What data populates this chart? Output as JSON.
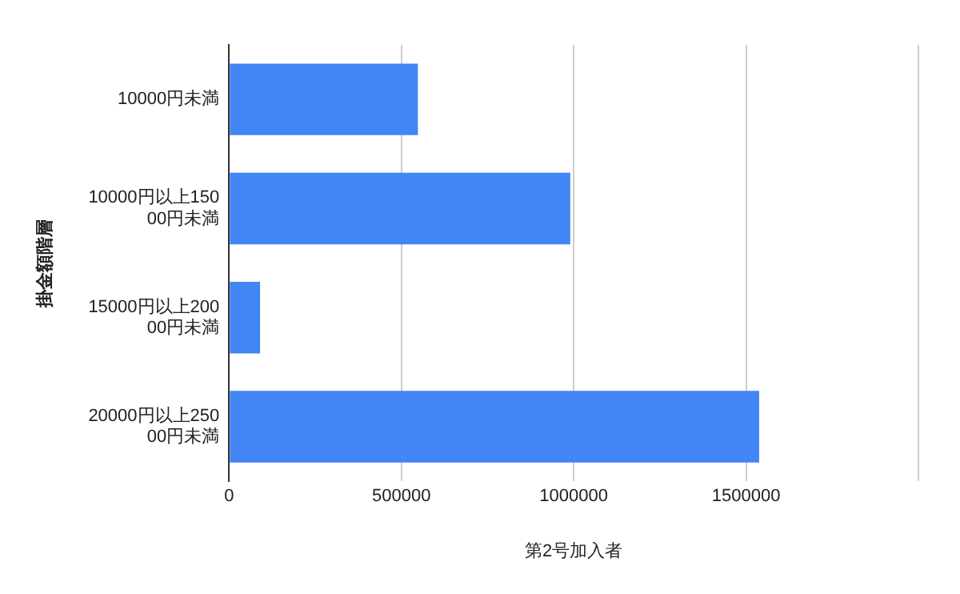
{
  "chart_data": {
    "type": "bar",
    "orientation": "horizontal",
    "categories": [
      "10000円未満",
      "10000円以上15000円未満",
      "15000円以上20000円未満",
      "20000円以上25000円未満"
    ],
    "values": [
      548000,
      990000,
      90000,
      1538000
    ],
    "color": "#4285f4",
    "xlim": [
      0,
      2000000
    ],
    "xticks": [
      0,
      500000,
      1000000,
      1500000,
      {
        "value": 2000000,
        "label": null
      }
    ],
    "xlabel": "第2号加入者",
    "ylabel": "掛金額階層",
    "grid": "x"
  }
}
